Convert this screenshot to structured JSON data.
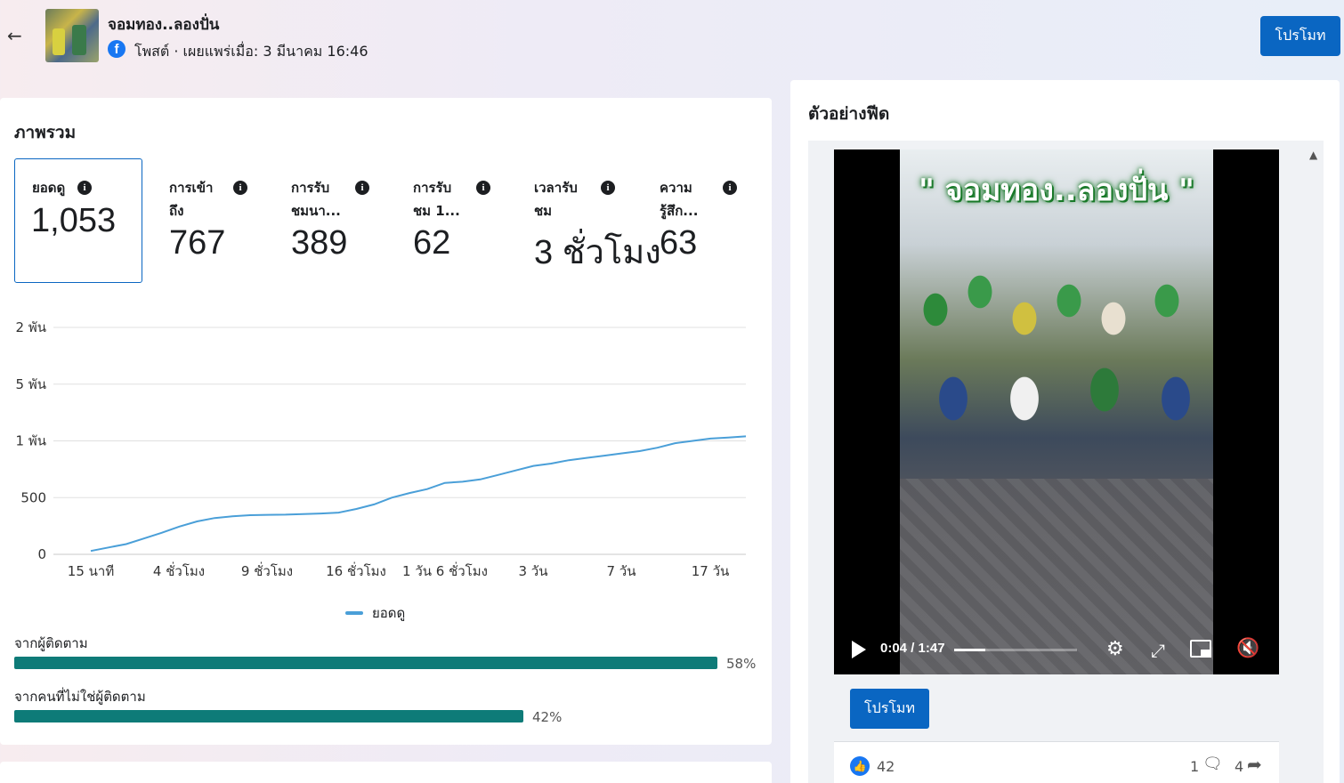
{
  "header": {
    "back_icon": "arrow-left-icon",
    "post_title": "จอมทอง..ลองปั่น",
    "post_meta": "โพสต์ · เผยแพร่เมื่อ: 3 มีนาคม 16:46",
    "promote_label": "โปรโมท",
    "brand_color": "#0a66c2"
  },
  "overview": {
    "title": "ภาพรวม",
    "metrics": [
      {
        "label": "ยอดดู",
        "value": "1,053",
        "selected": true
      },
      {
        "label": "การเข้า\nถึง",
        "value": "767",
        "selected": false
      },
      {
        "label": "การรับ\nชมนา...",
        "value": "389",
        "selected": false
      },
      {
        "label": "การรับ\nชม 1...",
        "value": "62",
        "selected": false
      },
      {
        "label": "เวลารับ\nชม",
        "value": "3 ชั่วโมง",
        "selected": false
      },
      {
        "label": "ความ\nรู้สึก...",
        "value": "63",
        "selected": false
      }
    ],
    "legend_label": "ยอดดู",
    "followers_label": "จากผู้ติดตาม",
    "followers_pct": 58,
    "followers_pct_label": "58%",
    "non_followers_label": "จากคนที่ไม่ใช่ผู้ติดตาม",
    "non_followers_pct": 42,
    "non_followers_pct_label": "42%",
    "bar_color": "#0e7b78"
  },
  "chart_data": {
    "type": "line",
    "title": "",
    "xlabel": "",
    "ylabel": "",
    "y_tick_labels": [
      "0",
      "500",
      "1 พัน",
      "5 พัน",
      "2 พัน"
    ],
    "x_tick_labels": [
      "15 นาที",
      "4 ชั่วโมง",
      "9 ชั่วโมง",
      "16 ชั่วโมง",
      "1 วัน 6 ชั่วโมง",
      "3 วัน",
      "7 วัน",
      "17 วัน"
    ],
    "grid": true,
    "legend": "bottom-center",
    "series": [
      {
        "name": "ยอดดู",
        "color": "#4a9fd8",
        "values": [
          30,
          60,
          90,
          140,
          190,
          245,
          290,
          320,
          335,
          345,
          348,
          350,
          355,
          360,
          368,
          400,
          440,
          500,
          540,
          575,
          630,
          640,
          660,
          700,
          740,
          780,
          800,
          830,
          850,
          870,
          890,
          910,
          940,
          980,
          1000,
          1020,
          1030,
          1040
        ]
      }
    ]
  },
  "feed": {
    "title": "ตัวอย่างฟีด",
    "video_caption": "\" จอมทอง..ลองปั่น \"",
    "video_time": "0:04 / 1:47",
    "video_progress": 0.25,
    "promote_label": "โปรโมท",
    "like_count": "42",
    "comment_count": "1",
    "share_count": "4"
  }
}
